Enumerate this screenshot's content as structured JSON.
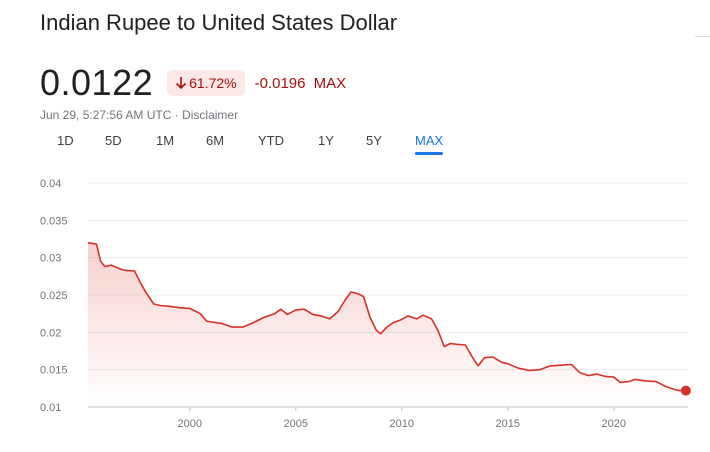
{
  "title": "Indian Rupee to United States Dollar",
  "price": "0.0122",
  "change_percent": "61.72%",
  "change_abs": "-0.0196",
  "change_period": "MAX",
  "timestamp": "Jun 29, 5:27:56 AM UTC",
  "disclaimer": "Disclaimer",
  "separator": "·",
  "colors": {
    "line": "#d93025",
    "negative": "#a50e0e",
    "badge_bg": "#fce8e6",
    "active_tab": "#1a73e8"
  },
  "tabs": [
    "1D",
    "5D",
    "1M",
    "6M",
    "YTD",
    "1Y",
    "5Y",
    "MAX"
  ],
  "active_tab": "MAX",
  "chart_data": {
    "type": "line",
    "title": "",
    "xlabel": "",
    "ylabel": "",
    "xlim": [
      1995.2,
      2023.5
    ],
    "ylim": [
      0.01,
      0.04
    ],
    "y_ticks": [
      "0.04",
      "0.035",
      "0.03",
      "0.025",
      "0.02",
      "0.015",
      "0.01"
    ],
    "x_ticks": [
      "2000",
      "2005",
      "2010",
      "2015",
      "2020"
    ],
    "grid": true,
    "series": [
      {
        "x": [
          1995.2,
          1995.6,
          1995.8,
          1996.0,
          1996.3,
          1996.8,
          1997.0,
          1997.4,
          1997.7,
          1997.9,
          1998.3,
          1998.6,
          1999.0,
          1999.5,
          2000.0,
          2000.5,
          2000.8,
          2001.0,
          2001.5,
          2002.0,
          2002.5,
          2003.0,
          2003.5,
          2004.0,
          2004.3,
          2004.6,
          2005.0,
          2005.4,
          2005.8,
          2006.2,
          2006.6,
          2007.0,
          2007.3,
          2007.6,
          2007.9,
          2008.2,
          2008.5,
          2008.8,
          2009.0,
          2009.3,
          2009.6,
          2009.9,
          2010.3,
          2010.7,
          2011.0,
          2011.4,
          2011.7,
          2012.0,
          2012.3,
          2012.6,
          2013.0,
          2013.3,
          2013.6,
          2013.9,
          2014.3,
          2014.7,
          2015.0,
          2015.5,
          2016.0,
          2016.5,
          2017.0,
          2017.5,
          2018.0,
          2018.4,
          2018.8,
          2019.2,
          2019.6,
          2020.0,
          2020.3,
          2020.7,
          2021.0,
          2021.5,
          2022.0,
          2022.4,
          2022.8,
          2023.1,
          2023.4
        ],
        "y": [
          0.032,
          0.0318,
          0.0295,
          0.0288,
          0.029,
          0.0284,
          0.0283,
          0.0282,
          0.0265,
          0.0255,
          0.0238,
          0.0236,
          0.0235,
          0.0233,
          0.0232,
          0.0225,
          0.0215,
          0.0214,
          0.0212,
          0.0207,
          0.0207,
          0.0213,
          0.022,
          0.0225,
          0.0231,
          0.0224,
          0.023,
          0.0231,
          0.0224,
          0.0222,
          0.0218,
          0.0228,
          0.0242,
          0.0254,
          0.0252,
          0.0248,
          0.022,
          0.0203,
          0.0198,
          0.0207,
          0.0213,
          0.0216,
          0.0222,
          0.0218,
          0.0223,
          0.0218,
          0.0203,
          0.0181,
          0.0185,
          0.0184,
          0.0183,
          0.0168,
          0.0155,
          0.0166,
          0.0167,
          0.016,
          0.0158,
          0.0152,
          0.0149,
          0.015,
          0.0155,
          0.0156,
          0.0157,
          0.0146,
          0.0142,
          0.0144,
          0.0141,
          0.014,
          0.0133,
          0.0134,
          0.0137,
          0.0135,
          0.0134,
          0.0128,
          0.0124,
          0.0122,
          0.0122
        ]
      }
    ]
  }
}
